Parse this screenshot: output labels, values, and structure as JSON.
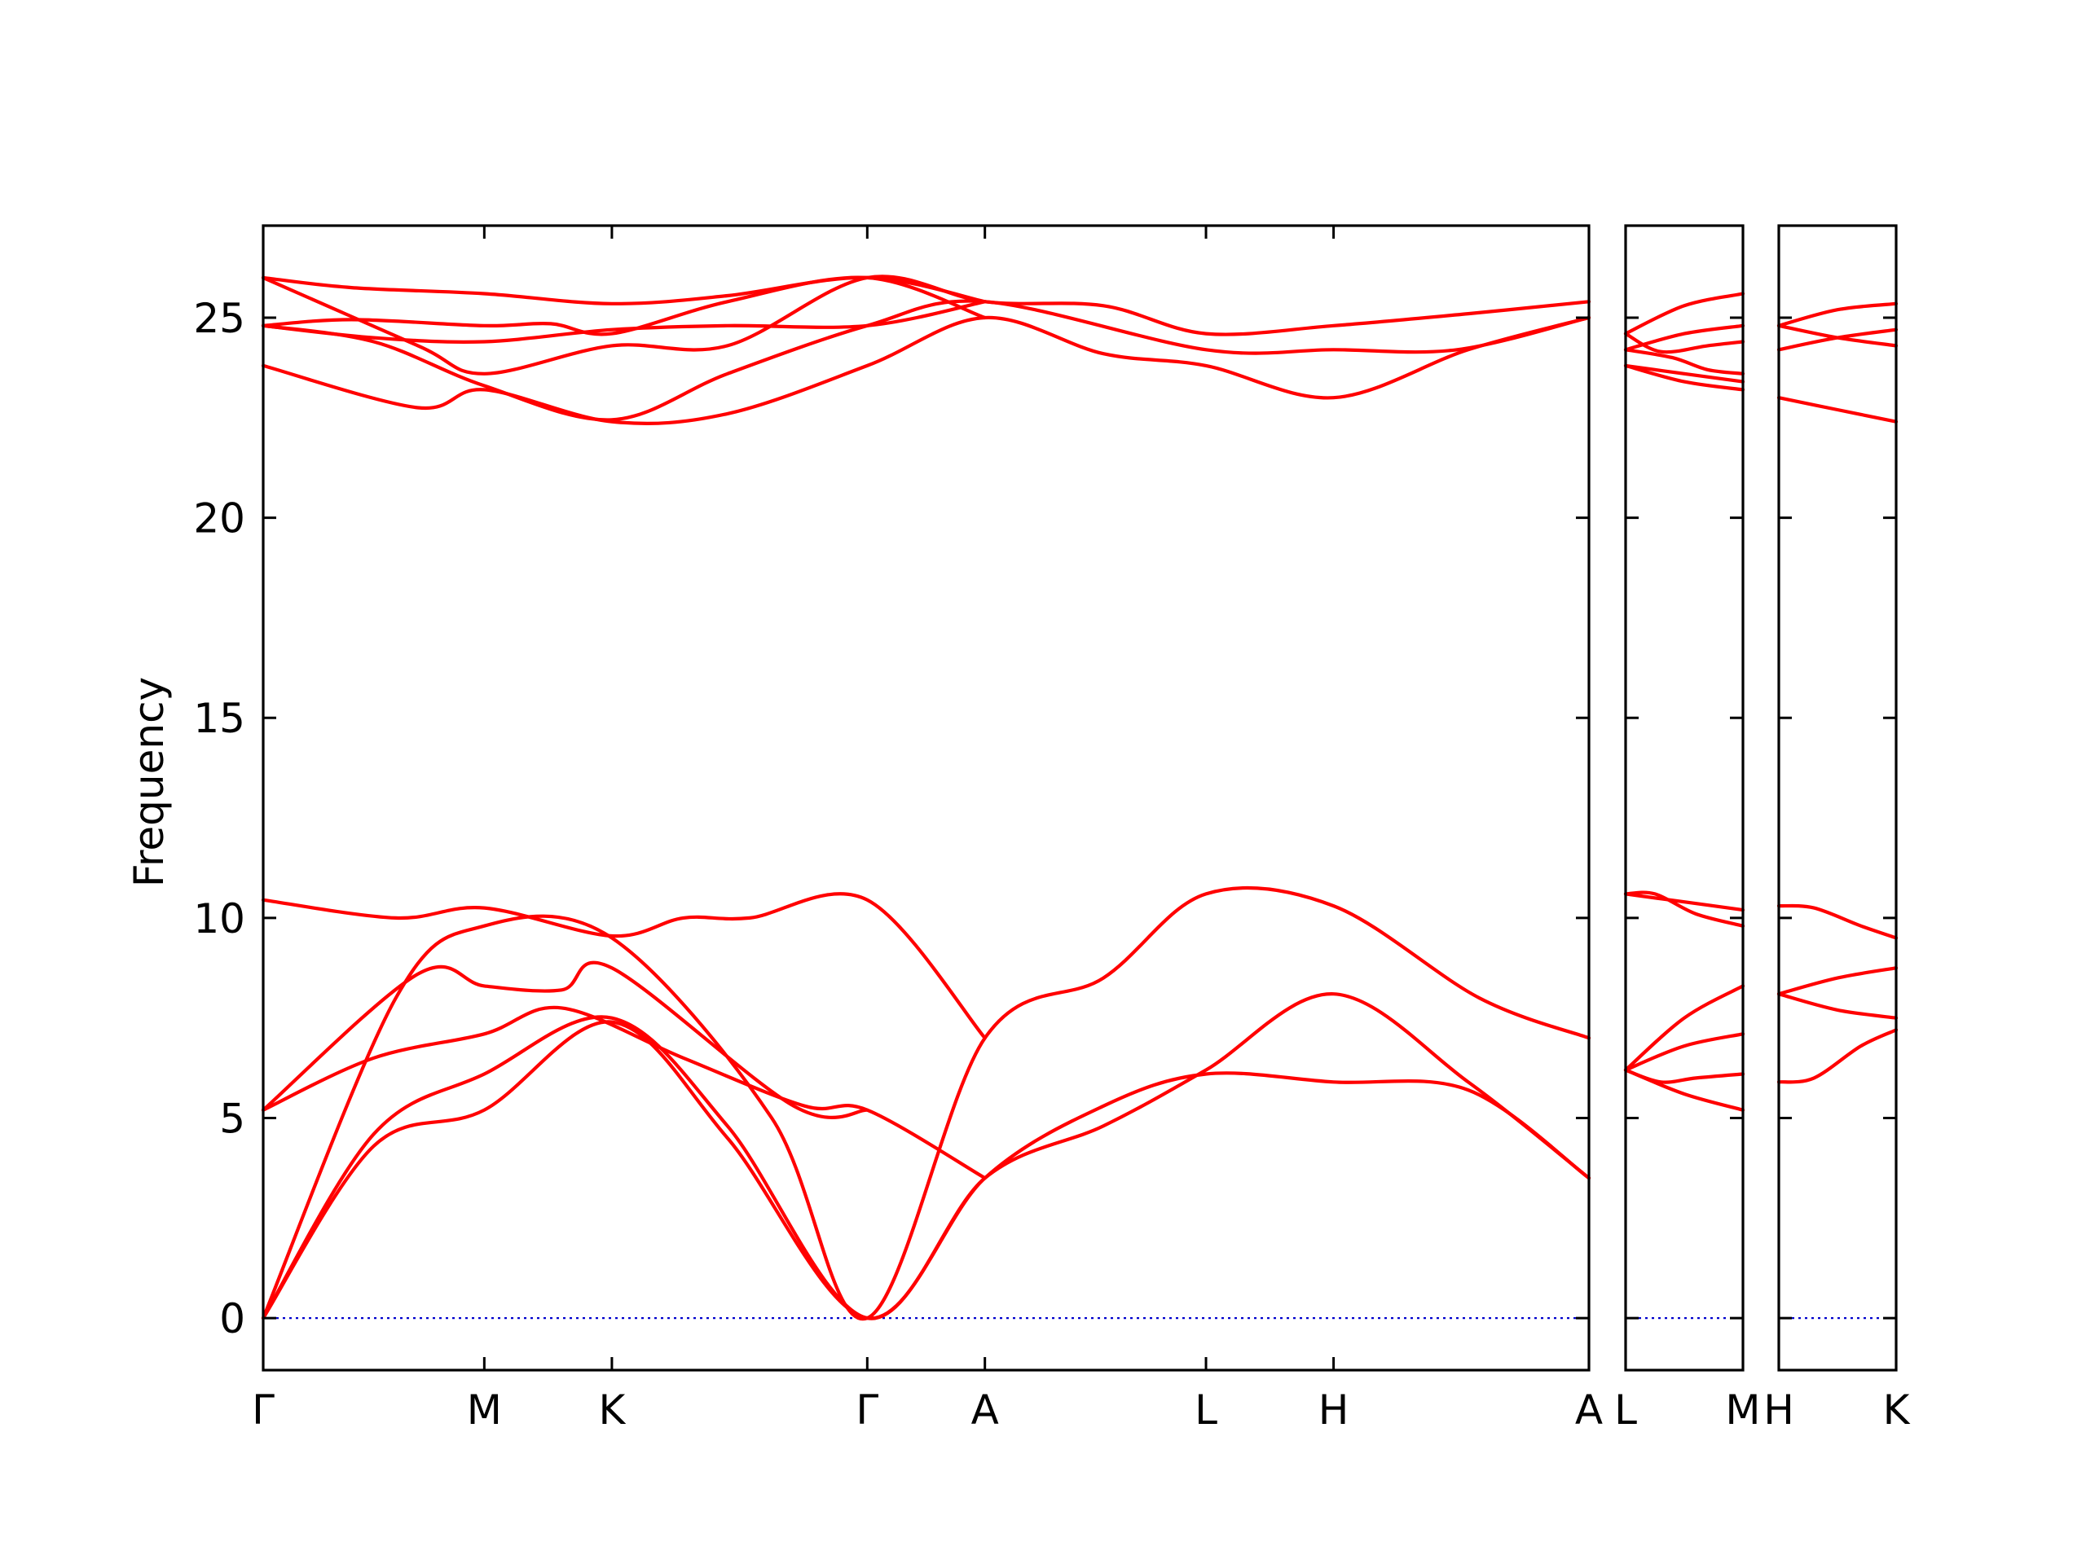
{
  "chart_data": {
    "type": "line",
    "ylabel": "Frequency",
    "ylim": [
      -1.3,
      27.3
    ],
    "yticks": [
      0,
      5,
      10,
      15,
      20,
      25
    ],
    "colors": {
      "band": "#ff0000",
      "zero_line": "#0000cc",
      "axes": "#000000"
    },
    "panels": [
      {
        "name": "Γ-M-K-Γ-A-L-H-A",
        "xticks": [
          {
            "pos": 0,
            "label": "Γ"
          },
          {
            "pos": 1,
            "label": "M"
          },
          {
            "pos": 1.577,
            "label": "K"
          },
          {
            "pos": 2.732,
            "label": "Γ"
          },
          {
            "pos": 3.264,
            "label": "A"
          },
          {
            "pos": 4.264,
            "label": "L"
          },
          {
            "pos": 4.841,
            "label": "H"
          },
          {
            "pos": 5.996,
            "label": "A"
          }
        ],
        "xlim": [
          0,
          5.996
        ],
        "bands": [
          [
            [
              0,
              0
            ],
            [
              0.5,
              4.3
            ],
            [
              1,
              5.2
            ],
            [
              1.577,
              7.4
            ],
            [
              2.1,
              4.5
            ],
            [
              2.732,
              0
            ],
            [
              3.264,
              3.5
            ],
            [
              3.8,
              5.3
            ],
            [
              4.264,
              6.1
            ],
            [
              4.841,
              5.9
            ],
            [
              5.45,
              5.7
            ],
            [
              5.996,
              3.5
            ]
          ],
          [
            [
              0,
              0
            ],
            [
              0.5,
              4.6
            ],
            [
              1,
              6.1
            ],
            [
              1.577,
              7.5
            ],
            [
              2.1,
              4.8
            ],
            [
              2.732,
              0
            ],
            [
              3.264,
              3.5
            ],
            [
              3.8,
              4.8
            ],
            [
              4.264,
              6.2
            ],
            [
              4.841,
              8.1
            ],
            [
              5.45,
              5.9
            ],
            [
              5.996,
              3.5
            ]
          ],
          [
            [
              0,
              0
            ],
            [
              0.6,
              8.0
            ],
            [
              1,
              9.8
            ],
            [
              1.577,
              9.5
            ],
            [
              2.3,
              5.0
            ],
            [
              2.732,
              0
            ],
            [
              3.264,
              7.0
            ],
            [
              3.8,
              8.5
            ],
            [
              4.264,
              10.6
            ],
            [
              4.841,
              10.3
            ],
            [
              5.5,
              8.0
            ],
            [
              5.996,
              7.0
            ]
          ],
          [
            [
              0,
              5.2
            ],
            [
              0.5,
              6.5
            ],
            [
              1,
              7.1
            ],
            [
              1.35,
              7.75
            ],
            [
              1.9,
              6.5
            ],
            [
              2.45,
              5.3
            ],
            [
              2.732,
              5.2
            ],
            [
              3.264,
              3.5
            ]
          ],
          [
            [
              0,
              5.2
            ],
            [
              0.7,
              8.6
            ],
            [
              1,
              8.3
            ],
            [
              1.35,
              8.2
            ],
            [
              1.577,
              8.75
            ],
            [
              2.4,
              5.3
            ],
            [
              2.732,
              5.2
            ]
          ],
          [
            [
              0,
              10.45
            ],
            [
              0.6,
              10.0
            ],
            [
              1,
              10.25
            ],
            [
              1.577,
              9.55
            ],
            [
              1.9,
              10.0
            ],
            [
              2.2,
              10.0
            ],
            [
              2.732,
              10.45
            ],
            [
              3.264,
              7.0
            ]
          ],
          [
            [
              0,
              23.8
            ],
            [
              0.7,
              22.75
            ],
            [
              1,
              23.2
            ],
            [
              1.577,
              22.4
            ],
            [
              2.1,
              22.6
            ],
            [
              2.732,
              23.8
            ],
            [
              3.264,
              25.0
            ],
            [
              3.8,
              24.1
            ],
            [
              4.264,
              23.8
            ],
            [
              4.841,
              23.0
            ],
            [
              5.45,
              24.2
            ],
            [
              5.996,
              25.0
            ]
          ],
          [
            [
              0,
              24.8
            ],
            [
              0.5,
              24.4
            ],
            [
              1,
              23.3
            ],
            [
              1.577,
              22.45
            ],
            [
              2.1,
              23.6
            ],
            [
              2.732,
              24.8
            ],
            [
              3.264,
              25.4
            ],
            [
              4.264,
              24.2
            ],
            [
              4.841,
              24.2
            ],
            [
              5.4,
              24.2
            ],
            [
              5.996,
              25.0
            ]
          ],
          [
            [
              0,
              26.0
            ],
            [
              0.7,
              24.3
            ],
            [
              1,
              23.6
            ],
            [
              1.577,
              24.3
            ],
            [
              2.1,
              24.3
            ],
            [
              2.732,
              26.0
            ],
            [
              3.264,
              25.4
            ],
            [
              3.8,
              25.3
            ],
            [
              4.264,
              24.6
            ],
            [
              4.841,
              24.8
            ],
            [
              5.45,
              25.1
            ],
            [
              5.996,
              25.4
            ]
          ],
          [
            [
              0,
              24.8
            ],
            [
              0.5,
              24.5
            ],
            [
              1,
              24.4
            ],
            [
              1.577,
              24.7
            ],
            [
              2.1,
              24.8
            ],
            [
              2.732,
              24.8
            ],
            [
              3.264,
              25.4
            ]
          ],
          [
            [
              0,
              24.8
            ],
            [
              0.4,
              24.95
            ],
            [
              1,
              24.8
            ],
            [
              1.3,
              24.85
            ],
            [
              1.577,
              24.6
            ],
            [
              2.1,
              25.4
            ],
            [
              2.732,
              26.0
            ],
            [
              3.264,
              25.0
            ]
          ],
          [
            [
              0,
              26.0
            ],
            [
              0.4,
              25.75
            ],
            [
              1,
              25.6
            ],
            [
              1.577,
              25.35
            ],
            [
              2.1,
              25.55
            ],
            [
              2.732,
              26.0
            ],
            [
              3.264,
              25.4
            ]
          ]
        ]
      },
      {
        "name": "L-M",
        "xticks": [
          {
            "pos": 0,
            "label": "L"
          },
          {
            "pos": 1,
            "label": "M"
          }
        ],
        "xlim": [
          0,
          1
        ],
        "bands": [
          [
            [
              0,
              6.2
            ],
            [
              0.5,
              5.6
            ],
            [
              1,
              5.2
            ]
          ],
          [
            [
              0,
              6.2
            ],
            [
              0.3,
              5.9
            ],
            [
              0.6,
              6.0
            ],
            [
              1,
              6.1
            ]
          ],
          [
            [
              0,
              6.2
            ],
            [
              0.5,
              6.8
            ],
            [
              1,
              7.1
            ]
          ],
          [
            [
              0,
              6.2
            ],
            [
              0.5,
              7.5
            ],
            [
              1,
              8.3
            ]
          ],
          [
            [
              0,
              10.6
            ],
            [
              0.25,
              10.6
            ],
            [
              0.6,
              10.1
            ],
            [
              1,
              9.8
            ]
          ],
          [
            [
              0,
              10.6
            ],
            [
              0.5,
              10.4
            ],
            [
              1,
              10.2
            ]
          ],
          [
            [
              0,
              23.8
            ],
            [
              0.5,
              23.4
            ],
            [
              1,
              23.2
            ]
          ],
          [
            [
              0,
              23.8
            ],
            [
              0.5,
              23.6
            ],
            [
              1,
              23.4
            ]
          ],
          [
            [
              0,
              24.2
            ],
            [
              0.4,
              24.0
            ],
            [
              0.7,
              23.7
            ],
            [
              1,
              23.6
            ]
          ],
          [
            [
              0,
              24.2
            ],
            [
              0.5,
              24.6
            ],
            [
              1,
              24.8
            ]
          ],
          [
            [
              0,
              24.6
            ],
            [
              0.3,
              24.15
            ],
            [
              0.7,
              24.3
            ],
            [
              1,
              24.4
            ]
          ],
          [
            [
              0,
              24.6
            ],
            [
              0.5,
              25.3
            ],
            [
              1,
              25.6
            ]
          ]
        ]
      },
      {
        "name": "H-K",
        "xticks": [
          {
            "pos": 0,
            "label": "H"
          },
          {
            "pos": 1,
            "label": "K"
          }
        ],
        "xlim": [
          0,
          1
        ],
        "bands": [
          [
            [
              0,
              5.9
            ],
            [
              0.3,
              6.0
            ],
            [
              0.7,
              6.8
            ],
            [
              1,
              7.2
            ]
          ],
          [
            [
              0,
              8.1
            ],
            [
              0.5,
              7.7
            ],
            [
              1,
              7.5
            ]
          ],
          [
            [
              0,
              8.1
            ],
            [
              0.5,
              8.5
            ],
            [
              1,
              8.75
            ]
          ],
          [
            [
              0,
              10.3
            ],
            [
              0.3,
              10.25
            ],
            [
              0.7,
              9.8
            ],
            [
              1,
              9.5
            ]
          ],
          [
            [
              0,
              23.0
            ],
            [
              0.5,
              22.7
            ],
            [
              1,
              22.4
            ]
          ],
          [
            [
              0,
              24.2
            ],
            [
              0.5,
              24.5
            ],
            [
              1,
              24.7
            ]
          ],
          [
            [
              0,
              24.8
            ],
            [
              0.5,
              24.5
            ],
            [
              1,
              24.3
            ]
          ],
          [
            [
              0,
              24.8
            ],
            [
              0.5,
              25.2
            ],
            [
              1,
              25.35
            ]
          ]
        ]
      }
    ]
  }
}
